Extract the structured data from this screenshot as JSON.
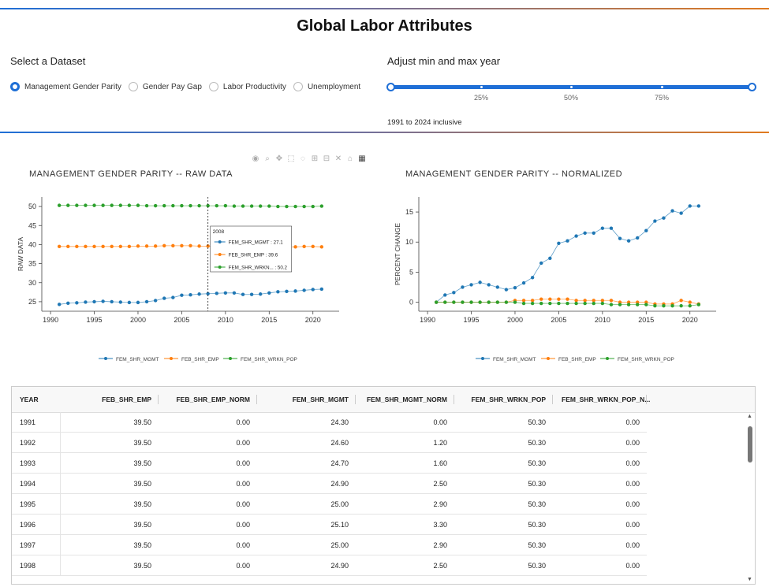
{
  "title": "Global Labor Attributes",
  "dataset_selector": {
    "label": "Select a Dataset",
    "options": [
      "Management Gender Parity",
      "Gender Pay Gap",
      "Labor Productivity",
      "Unemployment"
    ],
    "selected": "Management Gender Parity"
  },
  "year_slider": {
    "label": "Adjust min and max year",
    "marks": [
      "25%",
      "50%",
      "75%"
    ],
    "summary": "1991 to 2024 inclusive"
  },
  "modebar_icons": [
    "camera-icon",
    "zoom-icon",
    "pan-icon",
    "box-select-icon",
    "lasso-icon",
    "zoom-in-icon",
    "zoom-out-icon",
    "autoscale-icon",
    "reset-axes-icon",
    "plotly-logo-icon"
  ],
  "colors": {
    "accent": "#1f6fd6",
    "series1": "#1f77b4",
    "series2": "#ff7f0e",
    "series3": "#2ca02c"
  },
  "chart_data": [
    {
      "type": "line",
      "title": "MANAGEMENT GENDER PARITY -- RAW DATA",
      "ylabel": "RAW DATA",
      "xlabel": "",
      "xlim": [
        1989,
        2023
      ],
      "ylim": [
        22.5,
        52.5
      ],
      "xticks": [
        1990,
        1995,
        2000,
        2005,
        2010,
        2015,
        2020
      ],
      "yticks": [
        25,
        30,
        35,
        40,
        45,
        50
      ],
      "x": [
        1991,
        1992,
        1993,
        1994,
        1995,
        1996,
        1997,
        1998,
        1999,
        2000,
        2001,
        2002,
        2003,
        2004,
        2005,
        2006,
        2007,
        2008,
        2009,
        2010,
        2011,
        2012,
        2013,
        2014,
        2015,
        2016,
        2017,
        2018,
        2019,
        2020,
        2021
      ],
      "series": [
        {
          "name": "FEM_SHR_MGMT",
          "values": [
            24.3,
            24.6,
            24.7,
            24.9,
            25.0,
            25.1,
            25.0,
            24.9,
            24.8,
            24.8,
            25.0,
            25.3,
            25.9,
            26.1,
            26.7,
            26.8,
            27.0,
            27.1,
            27.2,
            27.3,
            27.3,
            26.9,
            26.9,
            27.0,
            27.3,
            27.6,
            27.7,
            27.8,
            28.0,
            28.2,
            28.3
          ]
        },
        {
          "name": "FEB_SHR_EMP",
          "values": [
            39.5,
            39.5,
            39.5,
            39.5,
            39.5,
            39.5,
            39.5,
            39.5,
            39.5,
            39.6,
            39.6,
            39.6,
            39.7,
            39.7,
            39.7,
            39.7,
            39.6,
            39.6,
            39.6,
            39.6,
            39.6,
            39.5,
            39.5,
            39.5,
            39.5,
            39.4,
            39.4,
            39.4,
            39.5,
            39.5,
            39.4
          ]
        },
        {
          "name": "FEM_SHR_WRKN_POP",
          "values": [
            50.3,
            50.3,
            50.3,
            50.3,
            50.3,
            50.3,
            50.3,
            50.3,
            50.3,
            50.3,
            50.2,
            50.2,
            50.2,
            50.2,
            50.2,
            50.2,
            50.2,
            50.2,
            50.2,
            50.2,
            50.1,
            50.1,
            50.1,
            50.1,
            50.1,
            50.0,
            50.0,
            50.0,
            50.0,
            50.0,
            50.1
          ]
        }
      ],
      "hover": {
        "x_label": "2008",
        "lines": [
          "FEM_SHR_MGMT : 27.1",
          "FEB_SHR_EMP : 39.6",
          "FEM_SHR_WRKN... : 50.2"
        ]
      }
    },
    {
      "type": "line",
      "title": "MANAGEMENT GENDER PARITY -- NORMALIZED",
      "ylabel": "PERCENT CHANGE",
      "xlabel": "",
      "xlim": [
        1989,
        2023
      ],
      "ylim": [
        -1.5,
        17.5
      ],
      "xticks": [
        1990,
        1995,
        2000,
        2005,
        2010,
        2015,
        2020
      ],
      "yticks": [
        0,
        5,
        10,
        15
      ],
      "x": [
        1991,
        1992,
        1993,
        1994,
        1995,
        1996,
        1997,
        1998,
        1999,
        2000,
        2001,
        2002,
        2003,
        2004,
        2005,
        2006,
        2007,
        2008,
        2009,
        2010,
        2011,
        2012,
        2013,
        2014,
        2015,
        2016,
        2017,
        2018,
        2019,
        2020,
        2021
      ],
      "series": [
        {
          "name": "FEM_SHR_MGMT",
          "values": [
            0.0,
            1.2,
            1.6,
            2.5,
            2.9,
            3.3,
            2.9,
            2.5,
            2.1,
            2.4,
            3.2,
            4.1,
            6.5,
            7.3,
            9.8,
            10.2,
            11.0,
            11.5,
            11.5,
            12.3,
            12.3,
            10.6,
            10.2,
            10.7,
            11.9,
            13.5,
            14.0,
            15.2,
            14.8,
            16.0,
            16.0
          ]
        },
        {
          "name": "FEB_SHR_EMP",
          "values": [
            0.0,
            0.0,
            0.0,
            0.0,
            0.0,
            0.0,
            0.0,
            0.0,
            0.0,
            0.3,
            0.3,
            0.3,
            0.5,
            0.5,
            0.5,
            0.5,
            0.3,
            0.3,
            0.3,
            0.3,
            0.3,
            0.0,
            0.0,
            0.0,
            0.0,
            -0.3,
            -0.3,
            -0.3,
            0.3,
            0.0,
            -0.3
          ]
        },
        {
          "name": "FEM_SHR_WRKN_POP",
          "values": [
            0.0,
            0.0,
            0.0,
            0.0,
            0.0,
            0.0,
            0.0,
            0.0,
            0.0,
            0.0,
            -0.2,
            -0.2,
            -0.2,
            -0.2,
            -0.2,
            -0.2,
            -0.2,
            -0.2,
            -0.2,
            -0.2,
            -0.4,
            -0.4,
            -0.4,
            -0.4,
            -0.4,
            -0.6,
            -0.6,
            -0.6,
            -0.6,
            -0.6,
            -0.4
          ]
        }
      ]
    }
  ],
  "table": {
    "columns": [
      "YEAR",
      "FEB_SHR_EMP",
      "FEB_SHR_EMP_NORM",
      "FEM_SHR_MGMT",
      "FEM_SHR_MGMT_NORM",
      "FEM_SHR_WRKN_POP",
      "FEM_SHR_WRKN_POP_N..."
    ],
    "rows": [
      [
        "1991",
        "39.50",
        "0.00",
        "24.30",
        "0.00",
        "50.30",
        "0.00"
      ],
      [
        "1992",
        "39.50",
        "0.00",
        "24.60",
        "1.20",
        "50.30",
        "0.00"
      ],
      [
        "1993",
        "39.50",
        "0.00",
        "24.70",
        "1.60",
        "50.30",
        "0.00"
      ],
      [
        "1994",
        "39.50",
        "0.00",
        "24.90",
        "2.50",
        "50.30",
        "0.00"
      ],
      [
        "1995",
        "39.50",
        "0.00",
        "25.00",
        "2.90",
        "50.30",
        "0.00"
      ],
      [
        "1996",
        "39.50",
        "0.00",
        "25.10",
        "3.30",
        "50.30",
        "0.00"
      ],
      [
        "1997",
        "39.50",
        "0.00",
        "25.00",
        "2.90",
        "50.30",
        "0.00"
      ],
      [
        "1998",
        "39.50",
        "0.00",
        "24.90",
        "2.50",
        "50.30",
        "0.00"
      ]
    ]
  }
}
